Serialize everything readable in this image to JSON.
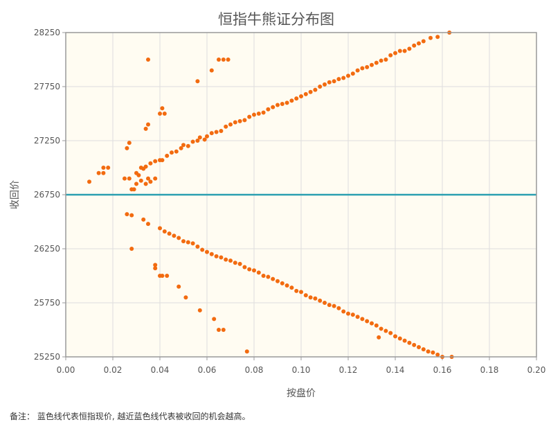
{
  "chart_data": {
    "type": "scatter",
    "title": "恒指牛熊证分布图",
    "xlabel": "按盘价",
    "ylabel": "收回价",
    "xlim": [
      0,
      0.2
    ],
    "ylim": [
      25250,
      28250
    ],
    "x_ticks": [
      "0.00",
      "0.02",
      "0.04",
      "0.06",
      "0.08",
      "0.10",
      "0.12",
      "0.14",
      "0.16",
      "0.18",
      "0.20"
    ],
    "y_ticks": [
      "25250",
      "25750",
      "26250",
      "26750",
      "27250",
      "27750",
      "28250"
    ],
    "grid": true,
    "reference_line": {
      "y": 26750,
      "color": "#2a9fb0"
    },
    "series": [
      {
        "color": "#f26b10",
        "points": [
          [
            0.01,
            26870
          ],
          [
            0.014,
            26950
          ],
          [
            0.016,
            26950
          ],
          [
            0.016,
            27000
          ],
          [
            0.018,
            27000
          ],
          [
            0.025,
            26900
          ],
          [
            0.026,
            27180
          ],
          [
            0.027,
            27230
          ],
          [
            0.027,
            26900
          ],
          [
            0.028,
            26800
          ],
          [
            0.029,
            26800
          ],
          [
            0.03,
            26850
          ],
          [
            0.03,
            26950
          ],
          [
            0.031,
            26930
          ],
          [
            0.032,
            26880
          ],
          [
            0.032,
            27000
          ],
          [
            0.033,
            26990
          ],
          [
            0.034,
            27010
          ],
          [
            0.034,
            26850
          ],
          [
            0.034,
            27360
          ],
          [
            0.035,
            27400
          ],
          [
            0.035,
            26900
          ],
          [
            0.036,
            26870
          ],
          [
            0.036,
            27040
          ],
          [
            0.038,
            27060
          ],
          [
            0.038,
            26900
          ],
          [
            0.04,
            27070
          ],
          [
            0.041,
            27070
          ],
          [
            0.04,
            27500
          ],
          [
            0.041,
            27550
          ],
          [
            0.042,
            27500
          ],
          [
            0.043,
            27110
          ],
          [
            0.045,
            27140
          ],
          [
            0.047,
            27150
          ],
          [
            0.049,
            27180
          ],
          [
            0.05,
            27210
          ],
          [
            0.052,
            27200
          ],
          [
            0.054,
            27240
          ],
          [
            0.056,
            27250
          ],
          [
            0.057,
            27280
          ],
          [
            0.059,
            27260
          ],
          [
            0.06,
            27290
          ],
          [
            0.062,
            27320
          ],
          [
            0.064,
            27330
          ],
          [
            0.066,
            27340
          ],
          [
            0.068,
            27380
          ],
          [
            0.07,
            27400
          ],
          [
            0.072,
            27420
          ],
          [
            0.074,
            27430
          ],
          [
            0.076,
            27440
          ],
          [
            0.078,
            27470
          ],
          [
            0.08,
            27490
          ],
          [
            0.082,
            27500
          ],
          [
            0.084,
            27510
          ],
          [
            0.086,
            27540
          ],
          [
            0.088,
            27560
          ],
          [
            0.09,
            27580
          ],
          [
            0.092,
            27590
          ],
          [
            0.094,
            27600
          ],
          [
            0.096,
            27620
          ],
          [
            0.098,
            27640
          ],
          [
            0.1,
            27660
          ],
          [
            0.102,
            27680
          ],
          [
            0.104,
            27700
          ],
          [
            0.106,
            27720
          ],
          [
            0.108,
            27750
          ],
          [
            0.11,
            27770
          ],
          [
            0.112,
            27790
          ],
          [
            0.114,
            27800
          ],
          [
            0.116,
            27820
          ],
          [
            0.118,
            27830
          ],
          [
            0.12,
            27850
          ],
          [
            0.122,
            27870
          ],
          [
            0.124,
            27900
          ],
          [
            0.126,
            27920
          ],
          [
            0.128,
            27930
          ],
          [
            0.13,
            27950
          ],
          [
            0.132,
            27970
          ],
          [
            0.134,
            27990
          ],
          [
            0.136,
            28000
          ],
          [
            0.138,
            28040
          ],
          [
            0.14,
            28060
          ],
          [
            0.142,
            28080
          ],
          [
            0.144,
            28080
          ],
          [
            0.146,
            28100
          ],
          [
            0.148,
            28130
          ],
          [
            0.15,
            28150
          ],
          [
            0.152,
            28170
          ],
          [
            0.155,
            28200
          ],
          [
            0.158,
            28210
          ],
          [
            0.163,
            28250
          ],
          [
            0.035,
            28000
          ],
          [
            0.056,
            27800
          ],
          [
            0.062,
            27900
          ],
          [
            0.065,
            28000
          ],
          [
            0.067,
            28000
          ],
          [
            0.069,
            28000
          ]
        ]
      },
      {
        "color": "#f26b10",
        "points": [
          [
            0.026,
            26570
          ],
          [
            0.028,
            26560
          ],
          [
            0.033,
            26520
          ],
          [
            0.035,
            26480
          ],
          [
            0.028,
            26250
          ],
          [
            0.038,
            26100
          ],
          [
            0.038,
            26070
          ],
          [
            0.04,
            26000
          ],
          [
            0.041,
            26000
          ],
          [
            0.043,
            26000
          ],
          [
            0.04,
            26440
          ],
          [
            0.042,
            26410
          ],
          [
            0.044,
            26390
          ],
          [
            0.046,
            26370
          ],
          [
            0.048,
            26350
          ],
          [
            0.05,
            26320
          ],
          [
            0.052,
            26310
          ],
          [
            0.054,
            26300
          ],
          [
            0.056,
            26270
          ],
          [
            0.058,
            26240
          ],
          [
            0.06,
            26220
          ],
          [
            0.062,
            26200
          ],
          [
            0.064,
            26180
          ],
          [
            0.066,
            26170
          ],
          [
            0.068,
            26150
          ],
          [
            0.07,
            26140
          ],
          [
            0.072,
            26120
          ],
          [
            0.074,
            26110
          ],
          [
            0.076,
            26080
          ],
          [
            0.078,
            26060
          ],
          [
            0.08,
            26050
          ],
          [
            0.082,
            26030
          ],
          [
            0.084,
            26000
          ],
          [
            0.086,
            25990
          ],
          [
            0.088,
            25970
          ],
          [
            0.09,
            25950
          ],
          [
            0.092,
            25930
          ],
          [
            0.094,
            25910
          ],
          [
            0.096,
            25890
          ],
          [
            0.098,
            25860
          ],
          [
            0.1,
            25850
          ],
          [
            0.102,
            25820
          ],
          [
            0.104,
            25800
          ],
          [
            0.106,
            25790
          ],
          [
            0.108,
            25770
          ],
          [
            0.11,
            25750
          ],
          [
            0.112,
            25730
          ],
          [
            0.114,
            25720
          ],
          [
            0.116,
            25700
          ],
          [
            0.118,
            25670
          ],
          [
            0.12,
            25650
          ],
          [
            0.122,
            25640
          ],
          [
            0.124,
            25620
          ],
          [
            0.126,
            25600
          ],
          [
            0.128,
            25580
          ],
          [
            0.13,
            25560
          ],
          [
            0.132,
            25540
          ],
          [
            0.134,
            25510
          ],
          [
            0.136,
            25490
          ],
          [
            0.138,
            25470
          ],
          [
            0.14,
            25440
          ],
          [
            0.142,
            25420
          ],
          [
            0.144,
            25400
          ],
          [
            0.146,
            25380
          ],
          [
            0.148,
            25360
          ],
          [
            0.15,
            25340
          ],
          [
            0.152,
            25320
          ],
          [
            0.154,
            25300
          ],
          [
            0.156,
            25290
          ],
          [
            0.158,
            25270
          ],
          [
            0.16,
            25250
          ],
          [
            0.164,
            25250
          ],
          [
            0.048,
            25900
          ],
          [
            0.051,
            25800
          ],
          [
            0.057,
            25680
          ],
          [
            0.063,
            25600
          ],
          [
            0.065,
            25500
          ],
          [
            0.067,
            25500
          ],
          [
            0.077,
            25300
          ],
          [
            0.133,
            25430
          ]
        ]
      }
    ]
  },
  "note": "备注： 蓝色线代表恒指现价, 越近蓝色线代表被收回的机会越高。"
}
